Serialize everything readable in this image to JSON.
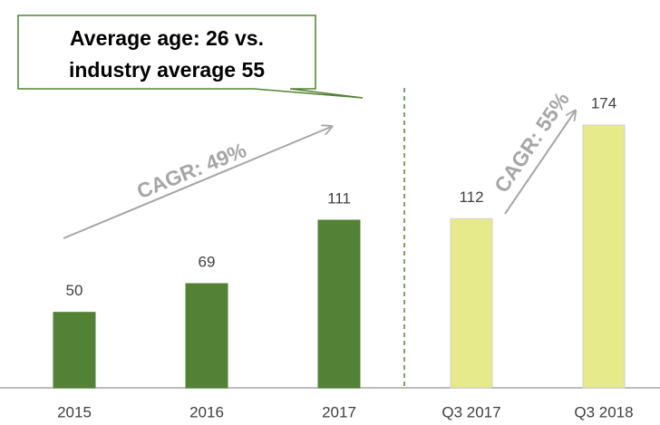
{
  "chart_data": {
    "type": "bar",
    "categories": [
      "2015",
      "2016",
      "2017",
      "Q3 2017",
      "Q3 2018"
    ],
    "values": [
      50,
      69,
      111,
      112,
      174
    ],
    "colors": [
      "#538135",
      "#538135",
      "#538135",
      "#e6ea8a",
      "#e6ea8a"
    ],
    "annotations": {
      "callout": [
        "Average age: 26 vs.",
        "industry average 55"
      ],
      "cagr": [
        "CAGR: 49%",
        "CAGR: 55%"
      ]
    }
  }
}
